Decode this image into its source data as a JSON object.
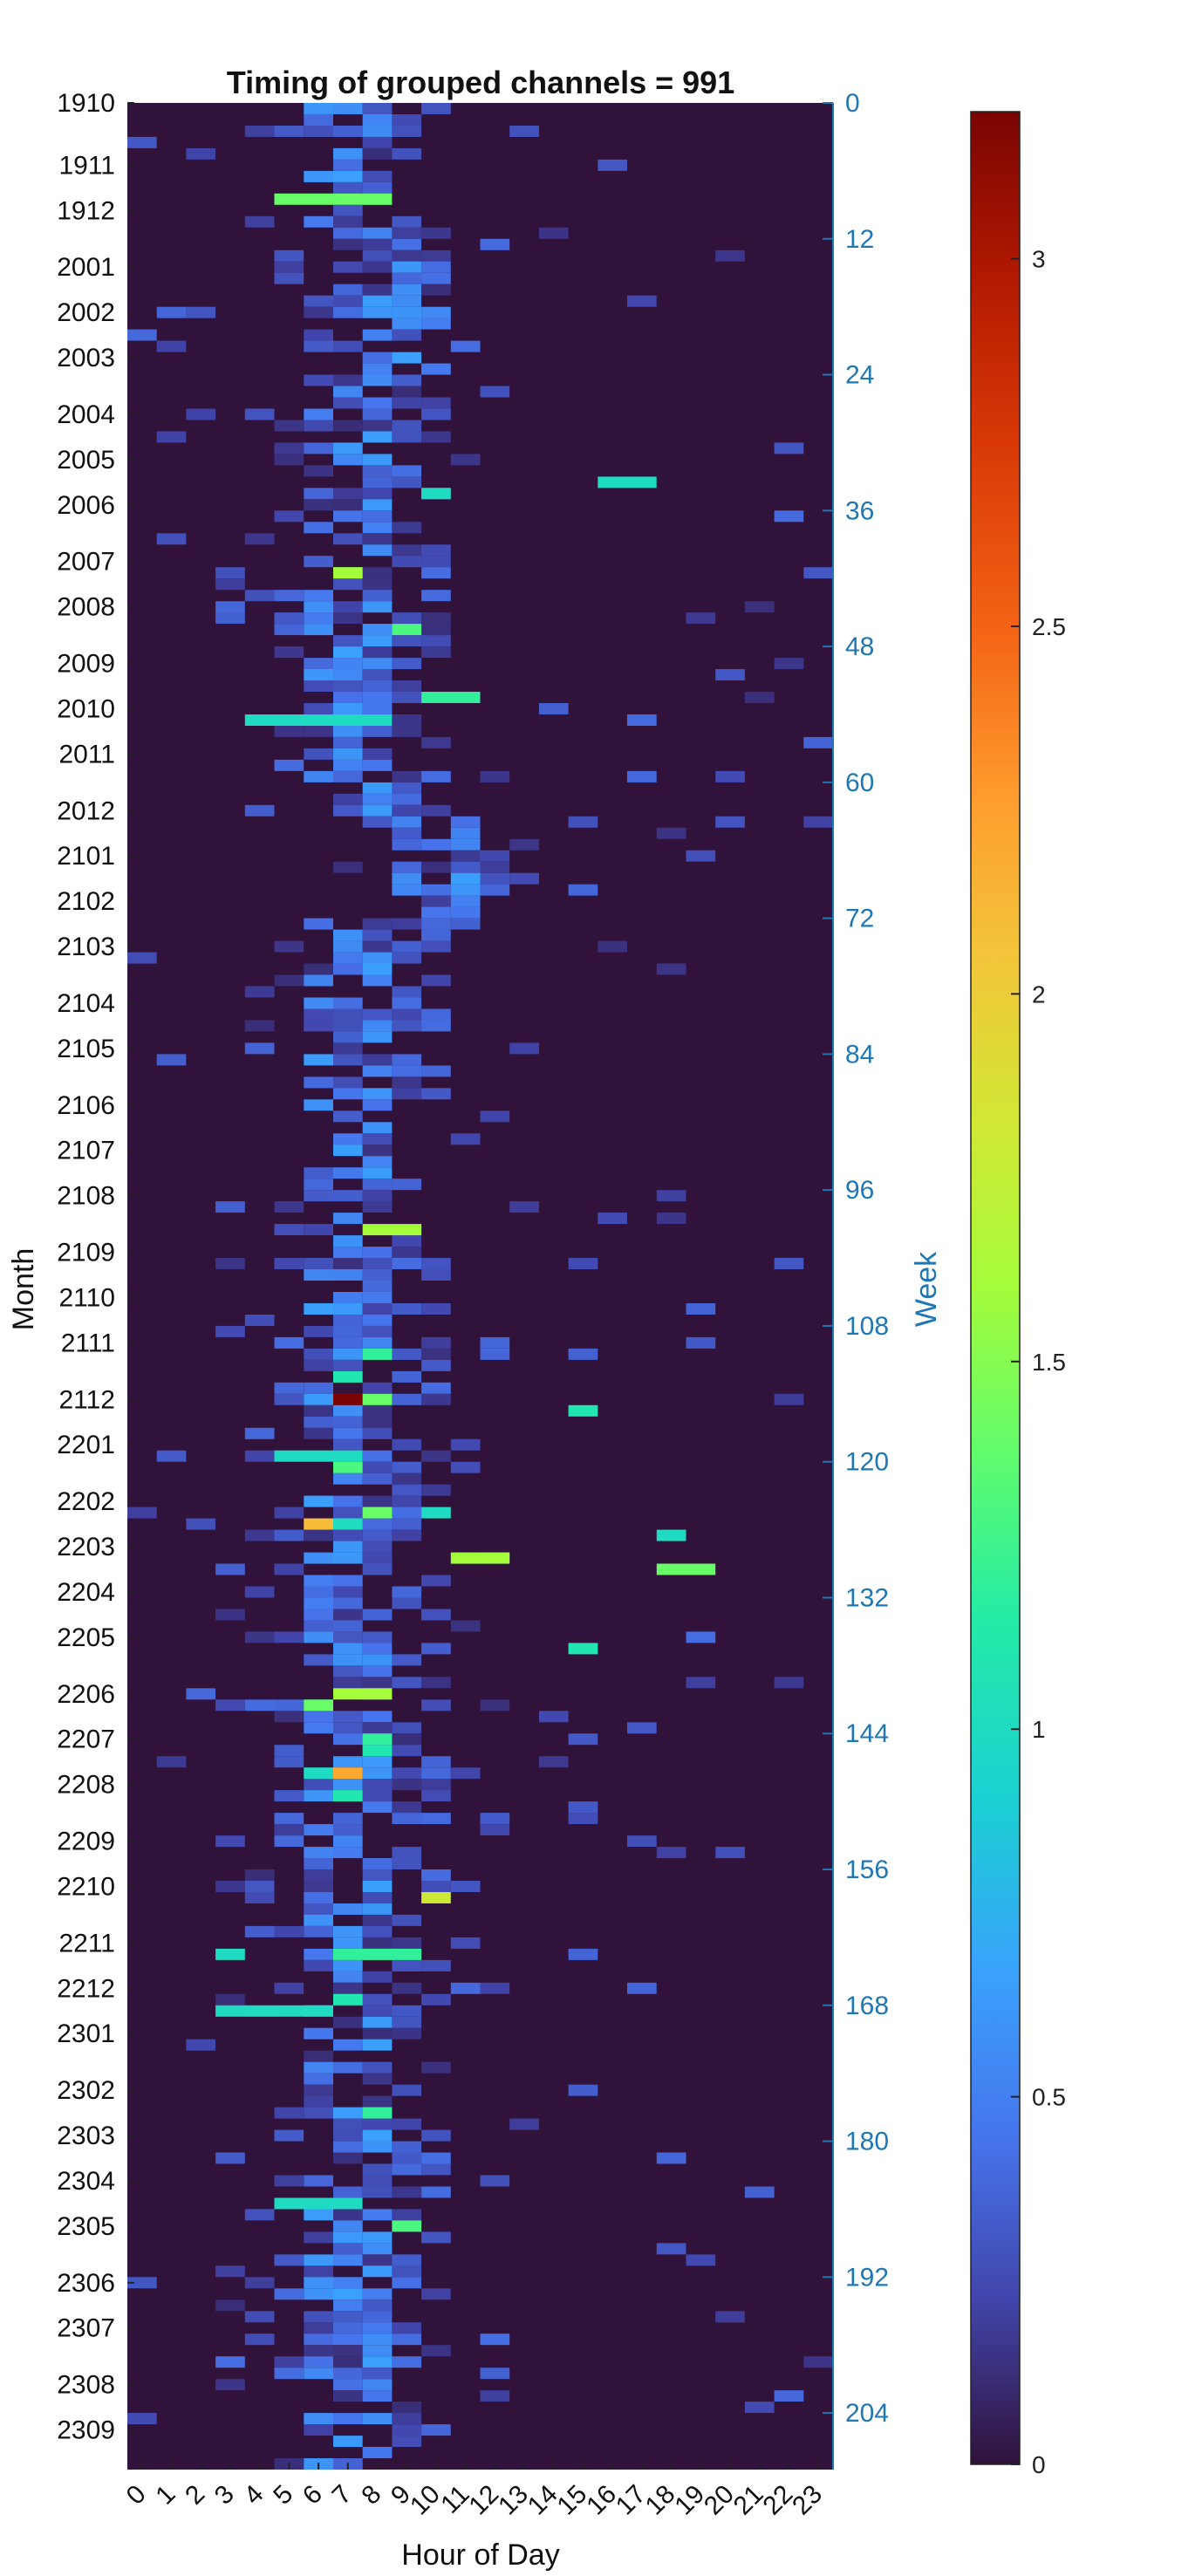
{
  "chart_data": {
    "type": "heatmap",
    "title": "Timing of grouped channels = 991",
    "xlabel": "Hour of Day",
    "ylabel": "Month",
    "ylabel_right": "Week",
    "x_ticks": [
      "0",
      "1",
      "2",
      "3",
      "4",
      "5",
      "6",
      "7",
      "8",
      "9",
      "10",
      "11",
      "12",
      "13",
      "14",
      "15",
      "16",
      "17",
      "18",
      "19",
      "20",
      "21",
      "22",
      "23"
    ],
    "month_ticks": [
      {
        "label": "1910",
        "week": 0
      },
      {
        "label": "1911",
        "week": 5.5
      },
      {
        "label": "1912",
        "week": 9.5
      },
      {
        "label": "2001",
        "week": 14.5
      },
      {
        "label": "2002",
        "week": 18.5
      },
      {
        "label": "2003",
        "week": 22.5
      },
      {
        "label": "2004",
        "week": 27.5
      },
      {
        "label": "2005",
        "week": 31.5
      },
      {
        "label": "2006",
        "week": 35.5
      },
      {
        "label": "2007",
        "week": 40.5
      },
      {
        "label": "2008",
        "week": 44.5
      },
      {
        "label": "2009",
        "week": 49.5
      },
      {
        "label": "2010",
        "week": 53.5
      },
      {
        "label": "2011",
        "week": 57.5
      },
      {
        "label": "2012",
        "week": 62.5
      },
      {
        "label": "2101",
        "week": 66.5
      },
      {
        "label": "2102",
        "week": 70.5
      },
      {
        "label": "2103",
        "week": 74.5
      },
      {
        "label": "2104",
        "week": 79.5
      },
      {
        "label": "2105",
        "week": 83.5
      },
      {
        "label": "2106",
        "week": 88.5
      },
      {
        "label": "2107",
        "week": 92.5
      },
      {
        "label": "2108",
        "week": 96.5
      },
      {
        "label": "2109",
        "week": 101.5
      },
      {
        "label": "2110",
        "week": 105.5
      },
      {
        "label": "2111",
        "week": 109.5
      },
      {
        "label": "2112",
        "week": 114.5
      },
      {
        "label": "2201",
        "week": 118.5
      },
      {
        "label": "2202",
        "week": 123.5
      },
      {
        "label": "2203",
        "week": 127.5
      },
      {
        "label": "2204",
        "week": 131.5
      },
      {
        "label": "2205",
        "week": 135.5
      },
      {
        "label": "2206",
        "week": 140.5
      },
      {
        "label": "2207",
        "week": 144.5
      },
      {
        "label": "2208",
        "week": 148.5
      },
      {
        "label": "2209",
        "week": 153.5
      },
      {
        "label": "2210",
        "week": 157.5
      },
      {
        "label": "2211",
        "week": 162.5
      },
      {
        "label": "2212",
        "week": 166.5
      },
      {
        "label": "2301",
        "week": 170.5
      },
      {
        "label": "2302",
        "week": 175.5
      },
      {
        "label": "2303",
        "week": 179.5
      },
      {
        "label": "2304",
        "week": 183.5
      },
      {
        "label": "2305",
        "week": 187.5
      },
      {
        "label": "2306",
        "week": 192.5
      },
      {
        "label": "2307",
        "week": 196.5
      },
      {
        "label": "2308",
        "week": 201.5
      },
      {
        "label": "2309",
        "week": 205.5
      }
    ],
    "week_ticks": [
      "0",
      "12",
      "24",
      "36",
      "48",
      "60",
      "72",
      "84",
      "96",
      "108",
      "120",
      "132",
      "144",
      "156",
      "168",
      "180",
      "192",
      "204"
    ],
    "week_range": [
      0,
      209
    ],
    "colorbar": {
      "range": [
        0,
        3.2
      ],
      "ticks": [
        "0",
        "0.5",
        "1",
        "1.5",
        "2",
        "2.5",
        "3"
      ]
    },
    "grid": "off",
    "highlights": [
      {
        "week": 8,
        "hour_start": 5,
        "hour_end": 9,
        "value": 1.4
      },
      {
        "week": 33,
        "hour_start": 16,
        "hour_end": 18,
        "value": 1.0
      },
      {
        "week": 34,
        "hour_start": 10,
        "hour_end": 11,
        "value": 1.0
      },
      {
        "week": 41,
        "hour_start": 7,
        "hour_end": 8,
        "value": 1.6
      },
      {
        "week": 46,
        "hour_start": 9,
        "hour_end": 10,
        "value": 1.3
      },
      {
        "week": 52,
        "hour_start": 10,
        "hour_end": 12,
        "value": 1.2
      },
      {
        "week": 54,
        "hour_start": 4,
        "hour_end": 9,
        "value": 1.0
      },
      {
        "week": 99,
        "hour_start": 8,
        "hour_end": 10,
        "value": 1.6
      },
      {
        "week": 110,
        "hour_start": 8,
        "hour_end": 9,
        "value": 1.2
      },
      {
        "week": 112,
        "hour_start": 7,
        "hour_end": 8,
        "value": 1.1
      },
      {
        "week": 114,
        "hour_start": 7,
        "hour_end": 8,
        "value": 3.2
      },
      {
        "week": 114,
        "hour_start": 8,
        "hour_end": 9,
        "value": 1.4
      },
      {
        "week": 115,
        "hour_start": 15,
        "hour_end": 16,
        "value": 1.1
      },
      {
        "week": 119,
        "hour_start": 5,
        "hour_end": 8,
        "value": 1.0
      },
      {
        "week": 120,
        "hour_start": 7,
        "hour_end": 8,
        "value": 1.3
      },
      {
        "week": 124,
        "hour_start": 8,
        "hour_end": 9,
        "value": 1.4
      },
      {
        "week": 124,
        "hour_start": 10,
        "hour_end": 11,
        "value": 1.0
      },
      {
        "week": 125,
        "hour_start": 6,
        "hour_end": 7,
        "value": 2.1
      },
      {
        "week": 125,
        "hour_start": 7,
        "hour_end": 8,
        "value": 1.0
      },
      {
        "week": 126,
        "hour_start": 18,
        "hour_end": 19,
        "value": 1.0
      },
      {
        "week": 128,
        "hour_start": 11,
        "hour_end": 13,
        "value": 1.6
      },
      {
        "week": 129,
        "hour_start": 18,
        "hour_end": 20,
        "value": 1.4
      },
      {
        "week": 136,
        "hour_start": 15,
        "hour_end": 16,
        "value": 1.1
      },
      {
        "week": 140,
        "hour_start": 7,
        "hour_end": 9,
        "value": 1.6
      },
      {
        "week": 141,
        "hour_start": 6,
        "hour_end": 7,
        "value": 1.4
      },
      {
        "week": 144,
        "hour_start": 8,
        "hour_end": 9,
        "value": 1.2
      },
      {
        "week": 145,
        "hour_start": 8,
        "hour_end": 9,
        "value": 1.1
      },
      {
        "week": 147,
        "hour_start": 6,
        "hour_end": 7,
        "value": 1.0
      },
      {
        "week": 147,
        "hour_start": 7,
        "hour_end": 8,
        "value": 2.2
      },
      {
        "week": 149,
        "hour_start": 7,
        "hour_end": 8,
        "value": 1.1
      },
      {
        "week": 158,
        "hour_start": 10,
        "hour_end": 11,
        "value": 1.8
      },
      {
        "week": 163,
        "hour_start": 3,
        "hour_end": 4,
        "value": 1.0
      },
      {
        "week": 163,
        "hour_start": 7,
        "hour_end": 10,
        "value": 1.2
      },
      {
        "week": 168,
        "hour_start": 3,
        "hour_end": 7,
        "value": 1.0
      },
      {
        "week": 167,
        "hour_start": 7,
        "hour_end": 8,
        "value": 1.1
      },
      {
        "week": 177,
        "hour_start": 8,
        "hour_end": 9,
        "value": 1.2
      },
      {
        "week": 185,
        "hour_start": 5,
        "hour_end": 8,
        "value": 1.0
      },
      {
        "week": 187,
        "hour_start": 9,
        "hour_end": 10,
        "value": 1.3
      }
    ]
  }
}
